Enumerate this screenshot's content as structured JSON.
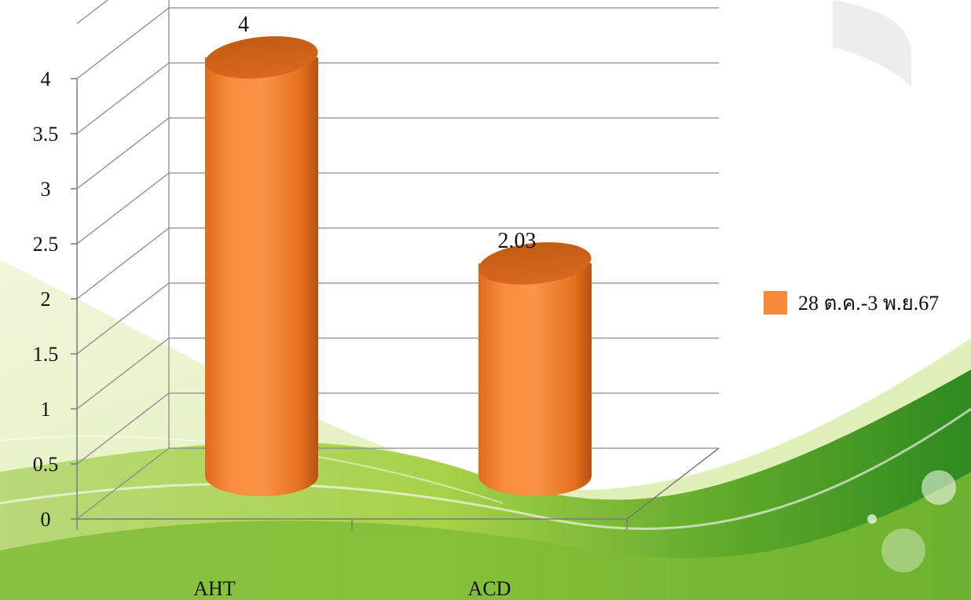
{
  "chart_data": {
    "type": "bar",
    "style": "3d-cylinder",
    "categories": [
      "AHT",
      "ACD"
    ],
    "series": [
      {
        "name": "28 ต.ค.-3 พ.ย.67",
        "values": [
          4,
          2.03
        ],
        "color": "#f7893a"
      }
    ],
    "data_labels": [
      "4",
      "2.03"
    ],
    "y_ticks": [
      "0",
      "0.5",
      "1",
      "1.5",
      "2",
      "2.5",
      "3",
      "3.5",
      "4"
    ],
    "ylim": [
      0,
      4.5
    ],
    "grid": true,
    "legend_position": "right",
    "background": "green swoosh"
  }
}
